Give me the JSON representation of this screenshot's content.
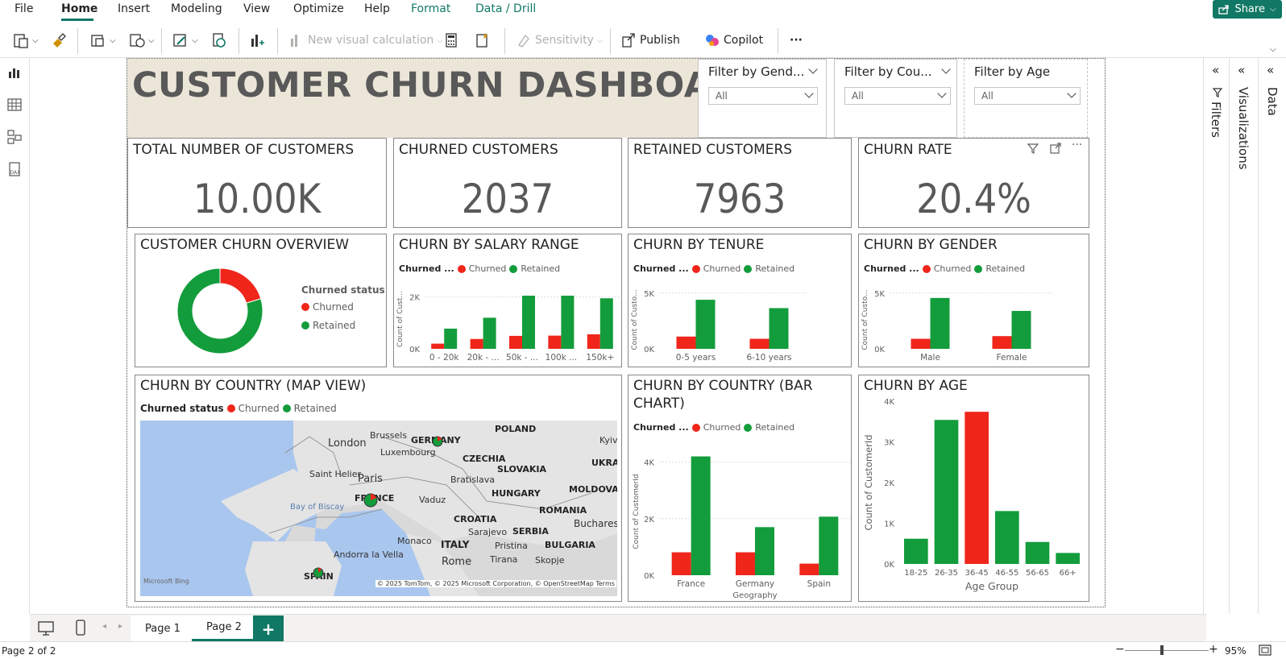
{
  "menu": {
    "items": [
      "File",
      "Home",
      "Insert",
      "Modeling",
      "View",
      "Optimize",
      "Help",
      "Format",
      "Data / Drill"
    ],
    "active": "Home",
    "share_label": "Share"
  },
  "ribbon": {
    "new_visual_calc": "New visual calculation",
    "sensitivity": "Sensitivity",
    "publish": "Publish",
    "copilot": "Copilot",
    "more": "···"
  },
  "panes": {
    "filters": "Filters",
    "visualizations": "Visualizations",
    "data": "Data"
  },
  "dashboard": {
    "title": "CUSTOMER CHURN DASHBOARD",
    "slicers": [
      {
        "title": "Filter by Gend...",
        "value": "All"
      },
      {
        "title": "Filter by Cou...",
        "value": "All"
      },
      {
        "title": "Filter by Age",
        "value": "All"
      }
    ],
    "kpis": [
      {
        "title": "TOTAL NUMBER OF CUSTOMERS",
        "value": "10.00K"
      },
      {
        "title": "CHURNED CUSTOMERS",
        "value": "2037"
      },
      {
        "title": "RETAINED CUSTOMERS",
        "value": "7963"
      },
      {
        "title": "CHURN RATE",
        "value": "20.4%"
      }
    ]
  },
  "colors": {
    "churned": "#f0261b",
    "retained": "#139c3c",
    "accent": "#117865"
  },
  "legend": {
    "title": "Churned status",
    "title_short": "Churned ...",
    "churned": "Churned",
    "retained": "Retained"
  },
  "visuals": {
    "overview_title": "CUSTOMER CHURN OVERVIEW",
    "salary_title": "CHURN BY SALARY RANGE",
    "tenure_title": "CHURN BY TENURE",
    "gender_title": "CHURN BY GENDER",
    "map_title": "CHURN BY COUNTRY (MAP VIEW)",
    "country_bar_title_1": "CHURN BY COUNTRY (BAR",
    "country_bar_title_2": "CHART)",
    "age_title": "CHURN BY AGE"
  },
  "chart_data": [
    {
      "id": "overview",
      "type": "pie",
      "categories": [
        "Churned",
        "Retained"
      ],
      "values": [
        2037,
        7963
      ]
    },
    {
      "id": "salary",
      "type": "bar",
      "categories": [
        "0 - 20k",
        "20k - ...",
        "50k - ...",
        "100k ...",
        "150k+"
      ],
      "series": [
        {
          "name": "Churned",
          "values": [
            200,
            380,
            500,
            510,
            560
          ]
        },
        {
          "name": "Retained",
          "values": [
            780,
            1200,
            2050,
            2050,
            1950
          ]
        }
      ],
      "ylabel": "Count of Cust...",
      "yticks": [
        "0K",
        "2K"
      ],
      "ylim": [
        0,
        2300
      ]
    },
    {
      "id": "tenure",
      "type": "bar",
      "categories": [
        "0-5 years",
        "6-10 years"
      ],
      "series": [
        {
          "name": "Churned",
          "values": [
            1100,
            900
          ]
        },
        {
          "name": "Retained",
          "values": [
            4400,
            3650
          ]
        }
      ],
      "ylabel": "Count of Custo...",
      "yticks": [
        "0K",
        "5K"
      ],
      "ylim": [
        0,
        5200
      ]
    },
    {
      "id": "gender",
      "type": "bar",
      "categories": [
        "Male",
        "Female"
      ],
      "series": [
        {
          "name": "Churned",
          "values": [
            900,
            1140
          ]
        },
        {
          "name": "Retained",
          "values": [
            4560,
            3400
          ]
        }
      ],
      "ylabel": "Count of Custo...",
      "yticks": [
        "0K",
        "5K"
      ],
      "ylim": [
        0,
        5200
      ]
    },
    {
      "id": "country",
      "type": "bar",
      "categories": [
        "France",
        "Germany",
        "Spain"
      ],
      "series": [
        {
          "name": "Churned",
          "values": [
            810,
            810,
            410
          ]
        },
        {
          "name": "Retained",
          "values": [
            4200,
            1700,
            2070
          ]
        }
      ],
      "xlabel": "Geography",
      "ylabel": "Count of CustomerId",
      "yticks": [
        "0K",
        "2K",
        "4K"
      ],
      "ylim": [
        0,
        4500
      ]
    },
    {
      "id": "age",
      "type": "bar",
      "categories": [
        "18-25",
        "26-35",
        "36-45",
        "46-55",
        "56-65",
        "66+"
      ],
      "values": [
        620,
        3540,
        3740,
        1300,
        540,
        270
      ],
      "colors": [
        "#139c3c",
        "#139c3c",
        "#f0261b",
        "#139c3c",
        "#139c3c",
        "#139c3c"
      ],
      "xlabel": "Age Group",
      "ylabel": "Count of CustomerId",
      "yticks": [
        "0K",
        "1K",
        "2K",
        "3K",
        "4K"
      ],
      "ylim": [
        0,
        4000
      ]
    }
  ],
  "map": {
    "labels": [
      "POLAND",
      "GERMANY",
      "London",
      "Brussels",
      "Luxembourg",
      "CZECHIA",
      "UKRAI",
      "SLOVAKIA",
      "Saint Helier",
      "Paris",
      "Bratislava",
      "MOLDOVA",
      "FRANCE",
      "HUNGARY",
      "Vaduz",
      "Bay of Biscay",
      "CROATIA",
      "ROMANIA",
      "SERBIA",
      "Sarajevo",
      "Monaco",
      "Bucharest",
      "BULGARIA",
      "ITALY",
      "Pristina",
      "Andorra la Vella",
      "Rome",
      "Tirana",
      "Skopje",
      "SPAIN",
      "Kyiv"
    ],
    "attribution": "© 2025 TomTom, © 2025 Microsoft Corporation, © OpenStreetMap  Terms",
    "bing": "Microsoft Bing"
  },
  "pages": {
    "tabs": [
      "Page 1",
      "Page 2"
    ],
    "active": "Page 2",
    "add": "+"
  },
  "status": {
    "page_info": "Page 2 of 2",
    "zoom": "95%"
  }
}
